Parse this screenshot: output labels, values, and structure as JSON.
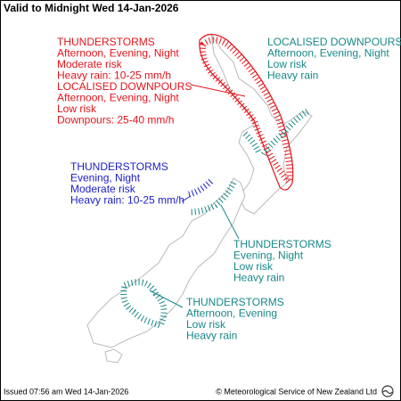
{
  "header": {
    "title": "Valid to Midnight Wed 14-Jan-2026"
  },
  "annotations": [
    {
      "color": "#e3141b",
      "lines": [
        "THUNDERSTORMS",
        "Afternoon, Evening, Night",
        "Moderate risk",
        "Heavy rain: 10-25 mm/h",
        "LOCALISED DOWNPOURS",
        "Afternoon, Evening, Night",
        "Low risk",
        "Downpours: 25-40 mm/h"
      ]
    },
    {
      "color": "#178787",
      "lines": [
        "LOCALISED DOWNPOURS",
        "Afternoon, Evening, Night",
        "Low risk",
        "Heavy rain"
      ]
    },
    {
      "color": "#1c1cc8",
      "lines": [
        "THUNDERSTORMS",
        "Evening, Night",
        "Moderate risk",
        "Heavy rain: 10-25 mm/h"
      ]
    },
    {
      "color": "#178787",
      "lines": [
        "THUNDERSTORMS",
        "Evening, Night",
        "Low risk",
        "Heavy rain"
      ]
    },
    {
      "color": "#178787",
      "lines": [
        "THUNDERSTORMS",
        "Afternoon, Evening",
        "Low risk",
        "Heavy rain"
      ]
    }
  ],
  "footer": {
    "issued": "Issued 07:56 am Wed 14-Jan-2026",
    "credit": "© Meteorological Service of New Zealand Ltd"
  }
}
